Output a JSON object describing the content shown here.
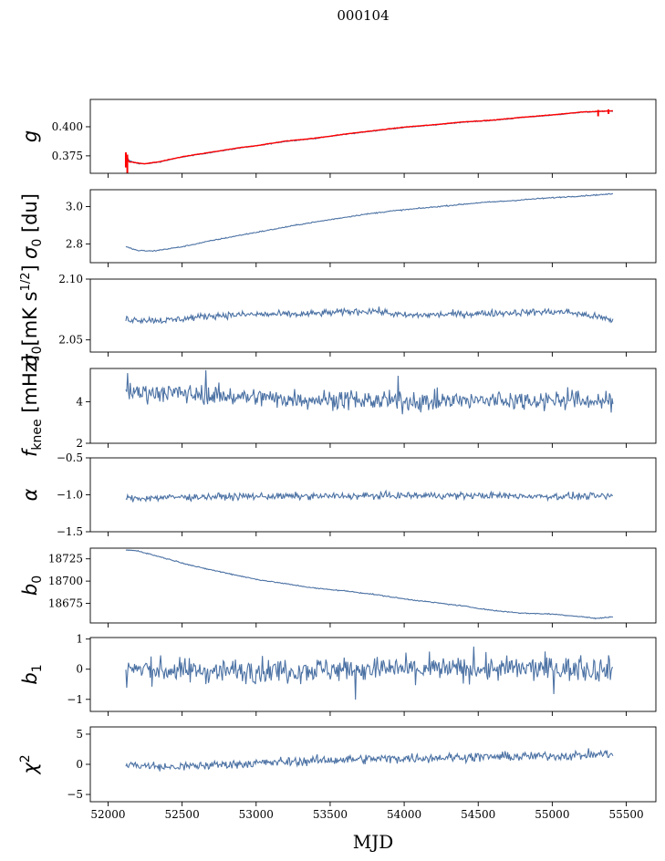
{
  "figure_title": "000104",
  "chart_data": {
    "type": "line",
    "title": "000104",
    "xlabel": "MJD",
    "xlim": [
      51880,
      55700
    ],
    "xticks": [
      52000,
      52500,
      53000,
      53500,
      54000,
      54500,
      55000,
      55500
    ],
    "x_range": [
      52120,
      55410
    ],
    "panels": [
      {
        "id": "g",
        "ylabel": "g",
        "ylim": [
          0.36,
          0.4235
        ],
        "yticks": [
          0.375,
          0.4
        ],
        "yticklabels": [
          "0.375",
          "0.400"
        ],
        "series": [
          {
            "color": "#4c72a4",
            "x": [
              52120,
              52140,
              52200,
              52250,
              52350,
              52500,
              52700,
              52900,
              53000,
              53200,
              53400,
              53600,
              53800,
              54000,
              54200,
              54400,
              54600,
              54800,
              55000,
              55200,
              55410
            ],
            "y": [
              0.377,
              0.371,
              0.3685,
              0.368,
              0.3698,
              0.374,
              0.378,
              0.382,
              0.3835,
              0.3875,
              0.39,
              0.3935,
              0.3965,
              0.3995,
              0.4015,
              0.404,
              0.4055,
              0.408,
              0.41,
              0.4125,
              0.4135
            ]
          },
          {
            "color": "#ff0000",
            "x": [
              52120,
              52140,
              52200,
              52250,
              52350,
              52500,
              52700,
              52900,
              53000,
              53200,
              53400,
              53600,
              53800,
              54000,
              54200,
              54400,
              54600,
              54800,
              55000,
              55200,
              55410
            ],
            "y": [
              0.376,
              0.37,
              0.3688,
              0.3682,
              0.37,
              0.3742,
              0.3782,
              0.3822,
              0.3837,
              0.3877,
              0.3902,
              0.3937,
              0.3967,
              0.3997,
              0.4017,
              0.4042,
              0.4057,
              0.4082,
              0.4102,
              0.4127,
              0.4137
            ]
          }
        ]
      },
      {
        "id": "sigma0_du",
        "ylabel": "σ0 [du]",
        "ylim": [
          2.7,
          3.09
        ],
        "yticks": [
          2.8,
          3.0
        ],
        "yticklabels": [
          "2.8",
          "3.0"
        ],
        "series": [
          {
            "color": "#4c72a4",
            "x": [
              52120,
              52200,
              52300,
              52500,
              52700,
              52900,
              53100,
              53300,
              53500,
              53700,
              53900,
              54100,
              54300,
              54500,
              54700,
              54900,
              55100,
              55300,
              55410
            ],
            "y": [
              2.785,
              2.765,
              2.762,
              2.785,
              2.818,
              2.848,
              2.876,
              2.905,
              2.93,
              2.955,
              2.975,
              2.99,
              3.005,
              3.02,
              3.03,
              3.042,
              3.052,
              3.062,
              3.068
            ]
          }
        ]
      },
      {
        "id": "sigma0_mK",
        "ylabel": "σ0[mK s^1/2]",
        "ylim": [
          2.04,
          2.1
        ],
        "yticks": [
          2.05,
          2.1
        ],
        "yticklabels": [
          "2.05",
          "2.10"
        ],
        "series": [
          {
            "color": "#4c72a4",
            "x": [
              52120,
              52400,
              52700,
              53000,
              53300,
              53600,
              53800,
              54000,
              54300,
              54600,
              54900,
              55100,
              55300,
              55410
            ],
            "y": [
              2.067,
              2.066,
              2.07,
              2.071,
              2.071,
              2.073,
              2.074,
              2.07,
              2.071,
              2.072,
              2.073,
              2.073,
              2.069,
              2.066
            ]
          }
        ]
      },
      {
        "id": "fknee",
        "ylabel": "f_knee [mHz]",
        "ylim": [
          2,
          5.6
        ],
        "yticks": [
          2,
          4
        ],
        "yticklabels": [
          "2",
          "4"
        ],
        "series": [
          {
            "color": "#4c72a4",
            "x": [
              52120,
              52500,
              53000,
              53500,
              54000,
              54500,
              55000,
              55410
            ],
            "y": [
              4.5,
              4.4,
              4.2,
              4.1,
              4.0,
              4.05,
              4.1,
              4.0
            ]
          }
        ]
      },
      {
        "id": "alpha",
        "ylabel": "α",
        "ylim": [
          -1.5,
          -0.5
        ],
        "yticks": [
          -1.5,
          -1.0,
          -0.5
        ],
        "yticklabels": [
          "−1.5",
          "−1.0",
          "−0.5"
        ],
        "series": [
          {
            "color": "#4c72a4",
            "x": [
              52120,
              52500,
              53000,
              53500,
              54000,
              54500,
              55000,
              55410
            ],
            "y": [
              -1.05,
              -1.03,
              -1.02,
              -1.02,
              -1.01,
              -1.01,
              -1.02,
              -1.02
            ]
          }
        ]
      },
      {
        "id": "b0",
        "ylabel": "b0",
        "ylim": [
          18653,
          18737
        ],
        "yticks": [
          18675,
          18700,
          18725
        ],
        "yticklabels": [
          "18675",
          "18700",
          "18725"
        ],
        "series": [
          {
            "color": "#4c72a4",
            "x": [
              52120,
              52200,
              52400,
              52600,
              52800,
              53000,
              53200,
              53400,
              53600,
              53800,
              54000,
              54200,
              54400,
              54600,
              54800,
              55000,
              55200,
              55300,
              55410
            ],
            "y": [
              18735,
              18734,
              18725,
              18716,
              18709,
              18702,
              18697,
              18692,
              18689,
              18685,
              18680,
              18676,
              18672,
              18667,
              18664,
              18663,
              18660,
              18658,
              18660
            ]
          }
        ]
      },
      {
        "id": "b1",
        "ylabel": "b1",
        "ylim": [
          -1.4,
          1.05
        ],
        "yticks": [
          -1,
          0,
          1
        ],
        "yticklabels": [
          "−1",
          "0",
          "1"
        ],
        "series": [
          {
            "color": "#4c72a4",
            "x": [
              52120,
              52500,
              53000,
              53500,
              54000,
              54500,
              55000,
              55410
            ],
            "y": [
              0.0,
              -0.05,
              -0.05,
              0.0,
              0.0,
              0.0,
              0.02,
              0.0
            ]
          }
        ]
      },
      {
        "id": "chi2",
        "ylabel": "χ²",
        "ylim": [
          -6.2,
          6.2
        ],
        "yticks": [
          -5,
          0,
          5
        ],
        "yticklabels": [
          "−5",
          "0",
          "5"
        ],
        "series": [
          {
            "color": "#4c72a4",
            "x": [
              52120,
              52400,
              52800,
              53200,
              53600,
              54000,
              54400,
              54800,
              55200,
              55410
            ],
            "y": [
              0.0,
              -0.5,
              0.0,
              0.4,
              0.8,
              1.0,
              1.2,
              1.3,
              1.5,
              1.8
            ]
          }
        ]
      }
    ]
  },
  "colors": {
    "series": "#4c72a4",
    "fit": "#ff0000"
  }
}
